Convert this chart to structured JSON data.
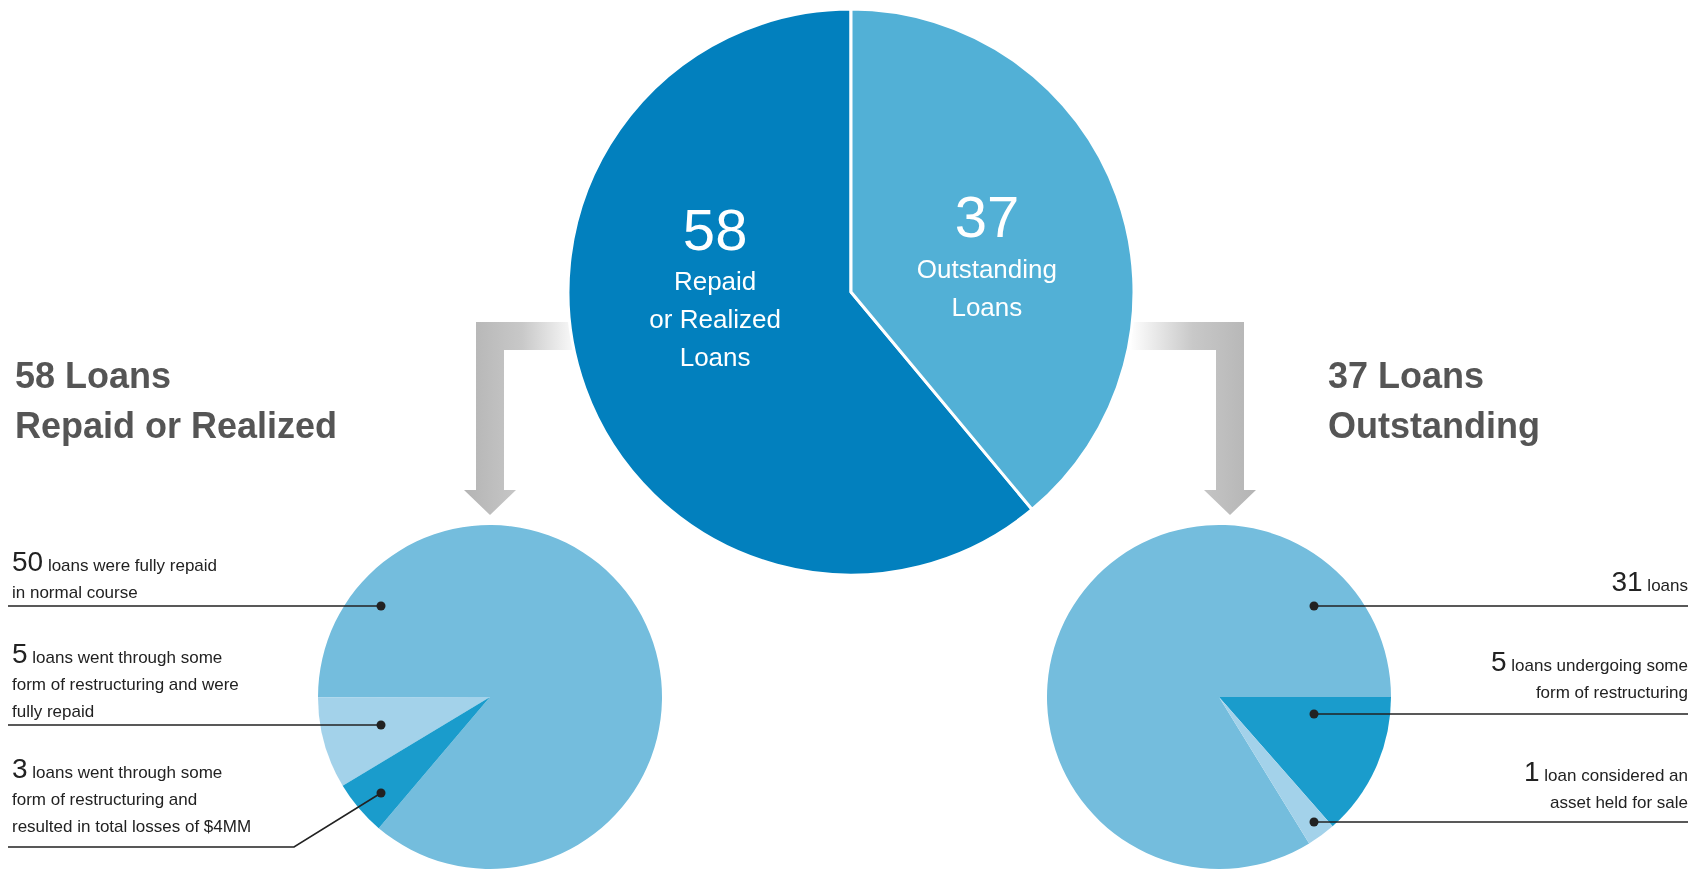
{
  "chart_data": [
    {
      "type": "pie",
      "categories": [
        "Repaid\nor Realized\nLoans",
        "Outstanding\nLoans"
      ],
      "values": [
        58,
        37
      ],
      "colors": [
        "#0280be",
        "#52b0d6"
      ],
      "data_labels": true
    },
    {
      "type": "pie",
      "title": "58 Loans\nRepaid or Realized",
      "categories": [
        "loans were fully repaid\nin normal course",
        "loans went through some\nform of restructuring and were\nfully repaid",
        "loans went through some\nform of restructuring and\nresulted in total losses of $4MM"
      ],
      "values": [
        50,
        5,
        3
      ],
      "colors": [
        "#74bddd",
        "#a3d2ea",
        "#1a9ccc"
      ],
      "data_labels": true
    },
    {
      "type": "pie",
      "title": "37 Loans\nOutstanding",
      "categories": [
        "loans",
        "loans undergoing some\nform of restructuring",
        "loan considered an\nasset held for sale"
      ],
      "values": [
        31,
        5,
        1
      ],
      "colors": [
        "#74bddd",
        "#1a9ccc",
        "#a3d2ea"
      ],
      "data_labels": true
    }
  ]
}
